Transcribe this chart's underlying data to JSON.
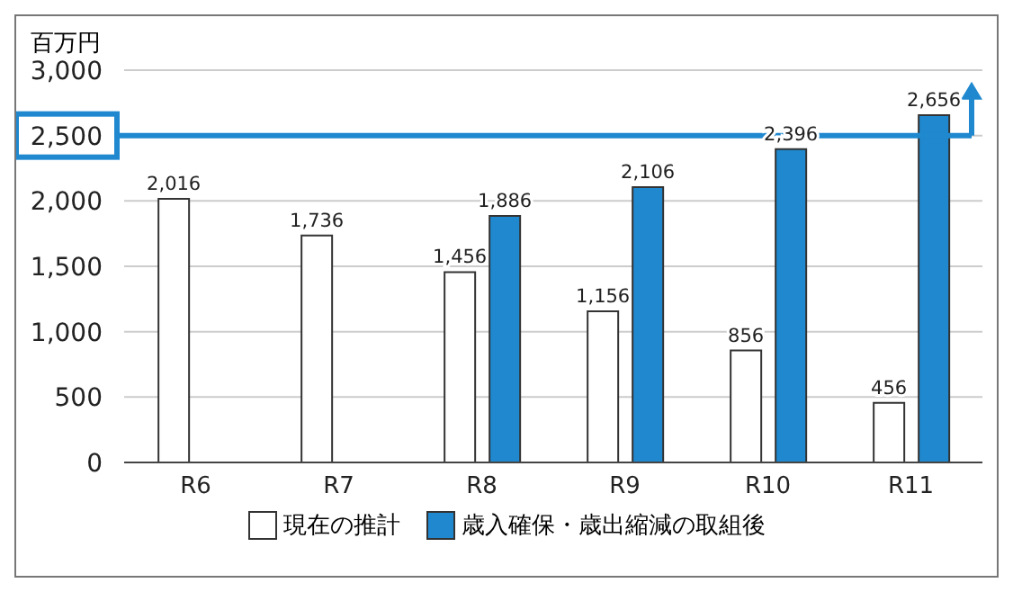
{
  "chart_data": {
    "type": "bar",
    "ylabel": "百万円",
    "categories": [
      "R6",
      "R7",
      "R8",
      "R9",
      "R10",
      "R11"
    ],
    "series": [
      {
        "name": "現在の推計",
        "color": "#ffffff",
        "values": [
          2016,
          1736,
          1456,
          1156,
          856,
          456
        ],
        "value_labels": [
          "2,016",
          "1,736",
          "1,456",
          "1,156",
          "856",
          "456"
        ]
      },
      {
        "name": "歳入確保・歳出縮減の取組後",
        "color": "#1f88cf",
        "values": [
          null,
          null,
          1886,
          2106,
          2396,
          2656
        ],
        "value_labels": [
          null,
          null,
          "1,886",
          "2,106",
          "2,396",
          "2,656"
        ]
      }
    ],
    "ylim": [
      0,
      3000
    ],
    "yticks": [
      {
        "value": 0,
        "label": "0"
      },
      {
        "value": 500,
        "label": "500"
      },
      {
        "value": 1000,
        "label": "1,000"
      },
      {
        "value": 1500,
        "label": "1,500"
      },
      {
        "value": 2000,
        "label": "2,000"
      },
      {
        "value": 2500,
        "label": "2,500"
      },
      {
        "value": 3000,
        "label": "3,000"
      }
    ],
    "ref_lines": [
      {
        "axis": "y",
        "value": 2500,
        "color": "#1f88cf"
      }
    ],
    "grid": "y",
    "legend": "bottom"
  }
}
